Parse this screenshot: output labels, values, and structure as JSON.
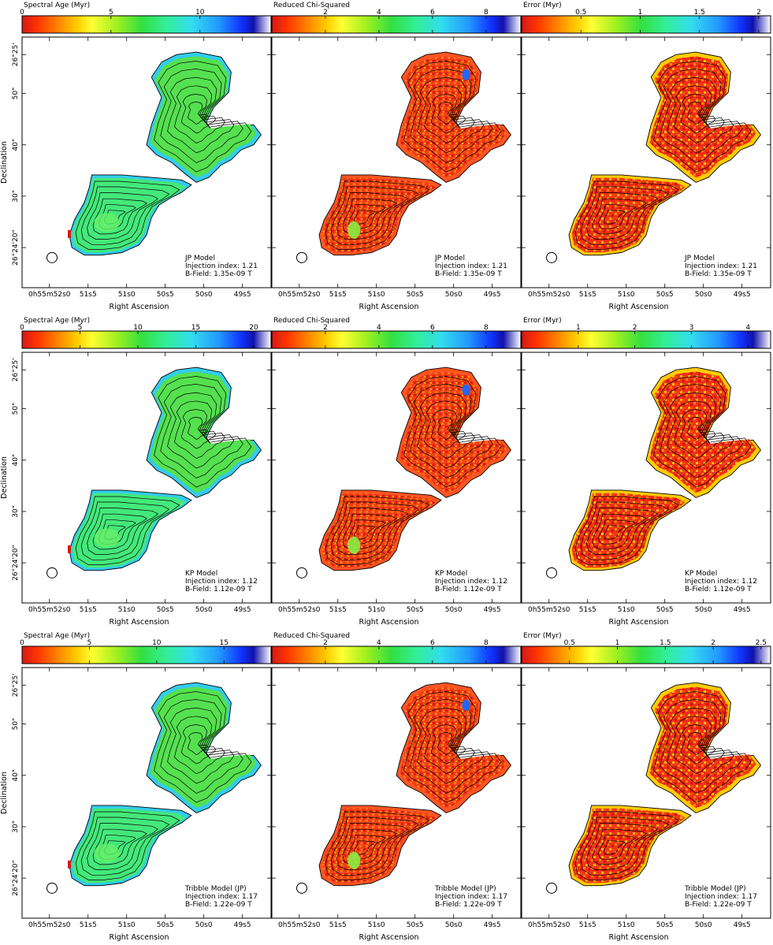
{
  "rows": [
    {
      "model_lines": [
        "JP Model",
        "Injection index: 1.21",
        "B-Field: 1.35e-09 T"
      ],
      "panels": [
        {
          "cbar_title": "Spectral Age (Myr)",
          "cbar_ticks": [
            "0",
            "5",
            "10"
          ],
          "cbar_max": 14.0,
          "tick_values": [
            0,
            5,
            10
          ],
          "map": "age"
        },
        {
          "cbar_title": "Reduced Chi-Squared",
          "cbar_ticks": [
            "2",
            "4",
            "6",
            "8"
          ],
          "cbar_max": 9.3,
          "tick_values": [
            2,
            4,
            6,
            8
          ],
          "map": "chi"
        },
        {
          "cbar_title": "Error (Myr)",
          "cbar_ticks": [
            "0.5",
            "1",
            "1.5",
            "2"
          ],
          "cbar_max": 2.1,
          "tick_values": [
            0.5,
            1,
            1.5,
            2
          ],
          "map": "err"
        }
      ]
    },
    {
      "model_lines": [
        "KP Model",
        "Injection index: 1.12",
        "B-Field: 1.12e-09 T"
      ],
      "panels": [
        {
          "cbar_title": "Spectral Age (Myr)",
          "cbar_ticks": [
            "0",
            "5",
            "10",
            "15",
            "20"
          ],
          "cbar_max": 21.5,
          "tick_values": [
            0,
            5,
            10,
            15,
            20
          ],
          "map": "age"
        },
        {
          "cbar_title": "Reduced Chi-Squared",
          "cbar_ticks": [
            "2",
            "4",
            "6",
            "8"
          ],
          "cbar_max": 9.3,
          "tick_values": [
            2,
            4,
            6,
            8
          ],
          "map": "chi"
        },
        {
          "cbar_title": "Error (Myr)",
          "cbar_ticks": [
            "1",
            "2",
            "3",
            "4"
          ],
          "cbar_max": 4.4,
          "tick_values": [
            1,
            2,
            3,
            4
          ],
          "map": "err"
        }
      ]
    },
    {
      "model_lines": [
        "Tribble Model (JP)",
        "Injection index: 1.17",
        "B-Field: 1.22e-09 T"
      ],
      "panels": [
        {
          "cbar_title": "Spectral Age (Myr)",
          "cbar_ticks": [
            "0",
            "5",
            "10",
            "15"
          ],
          "cbar_max": 18.5,
          "tick_values": [
            0,
            5,
            10,
            15
          ],
          "map": "age"
        },
        {
          "cbar_title": "Reduced Chi-Squared",
          "cbar_ticks": [
            "2",
            "4",
            "6",
            "8"
          ],
          "cbar_max": 9.3,
          "tick_values": [
            2,
            4,
            6,
            8
          ],
          "map": "chi"
        },
        {
          "cbar_title": "Error (Myr)",
          "cbar_ticks": [
            "0.5",
            "1",
            "1.5",
            "2",
            "2.5"
          ],
          "cbar_max": 2.6,
          "tick_values": [
            0.5,
            1,
            1.5,
            2,
            2.5
          ],
          "map": "err"
        }
      ]
    }
  ],
  "x_axis_label": "Right Ascension",
  "y_axis_label": "Declination",
  "ra_ticks": [
    {
      "label": "0h55m52s0",
      "frac": 0.0
    },
    {
      "label": "51s5",
      "frac": 0.155
    },
    {
      "label": "51s0",
      "frac": 0.31
    },
    {
      "label": "50s5",
      "frac": 0.465
    },
    {
      "label": "50s0",
      "frac": 0.62
    },
    {
      "label": "49s5",
      "frac": 0.775
    }
  ],
  "dec_ticks": [
    {
      "label": "26°25'",
      "frac": 0.07
    },
    {
      "label": "50\"",
      "frac": 0.225
    },
    {
      "label": "40\"",
      "frac": 0.43
    },
    {
      "label": "30\"",
      "frac": 0.635
    },
    {
      "label": "26°24'20\"",
      "frac": 0.84
    }
  ],
  "colormap": [
    "#d4191a",
    "#ff3300",
    "#ff8000",
    "#ffcc00",
    "#ffff33",
    "#a0f020",
    "#33e040",
    "#33ee99",
    "#33ddee",
    "#2299ff",
    "#1133ff",
    "#1111aa",
    "#ffffff"
  ]
}
